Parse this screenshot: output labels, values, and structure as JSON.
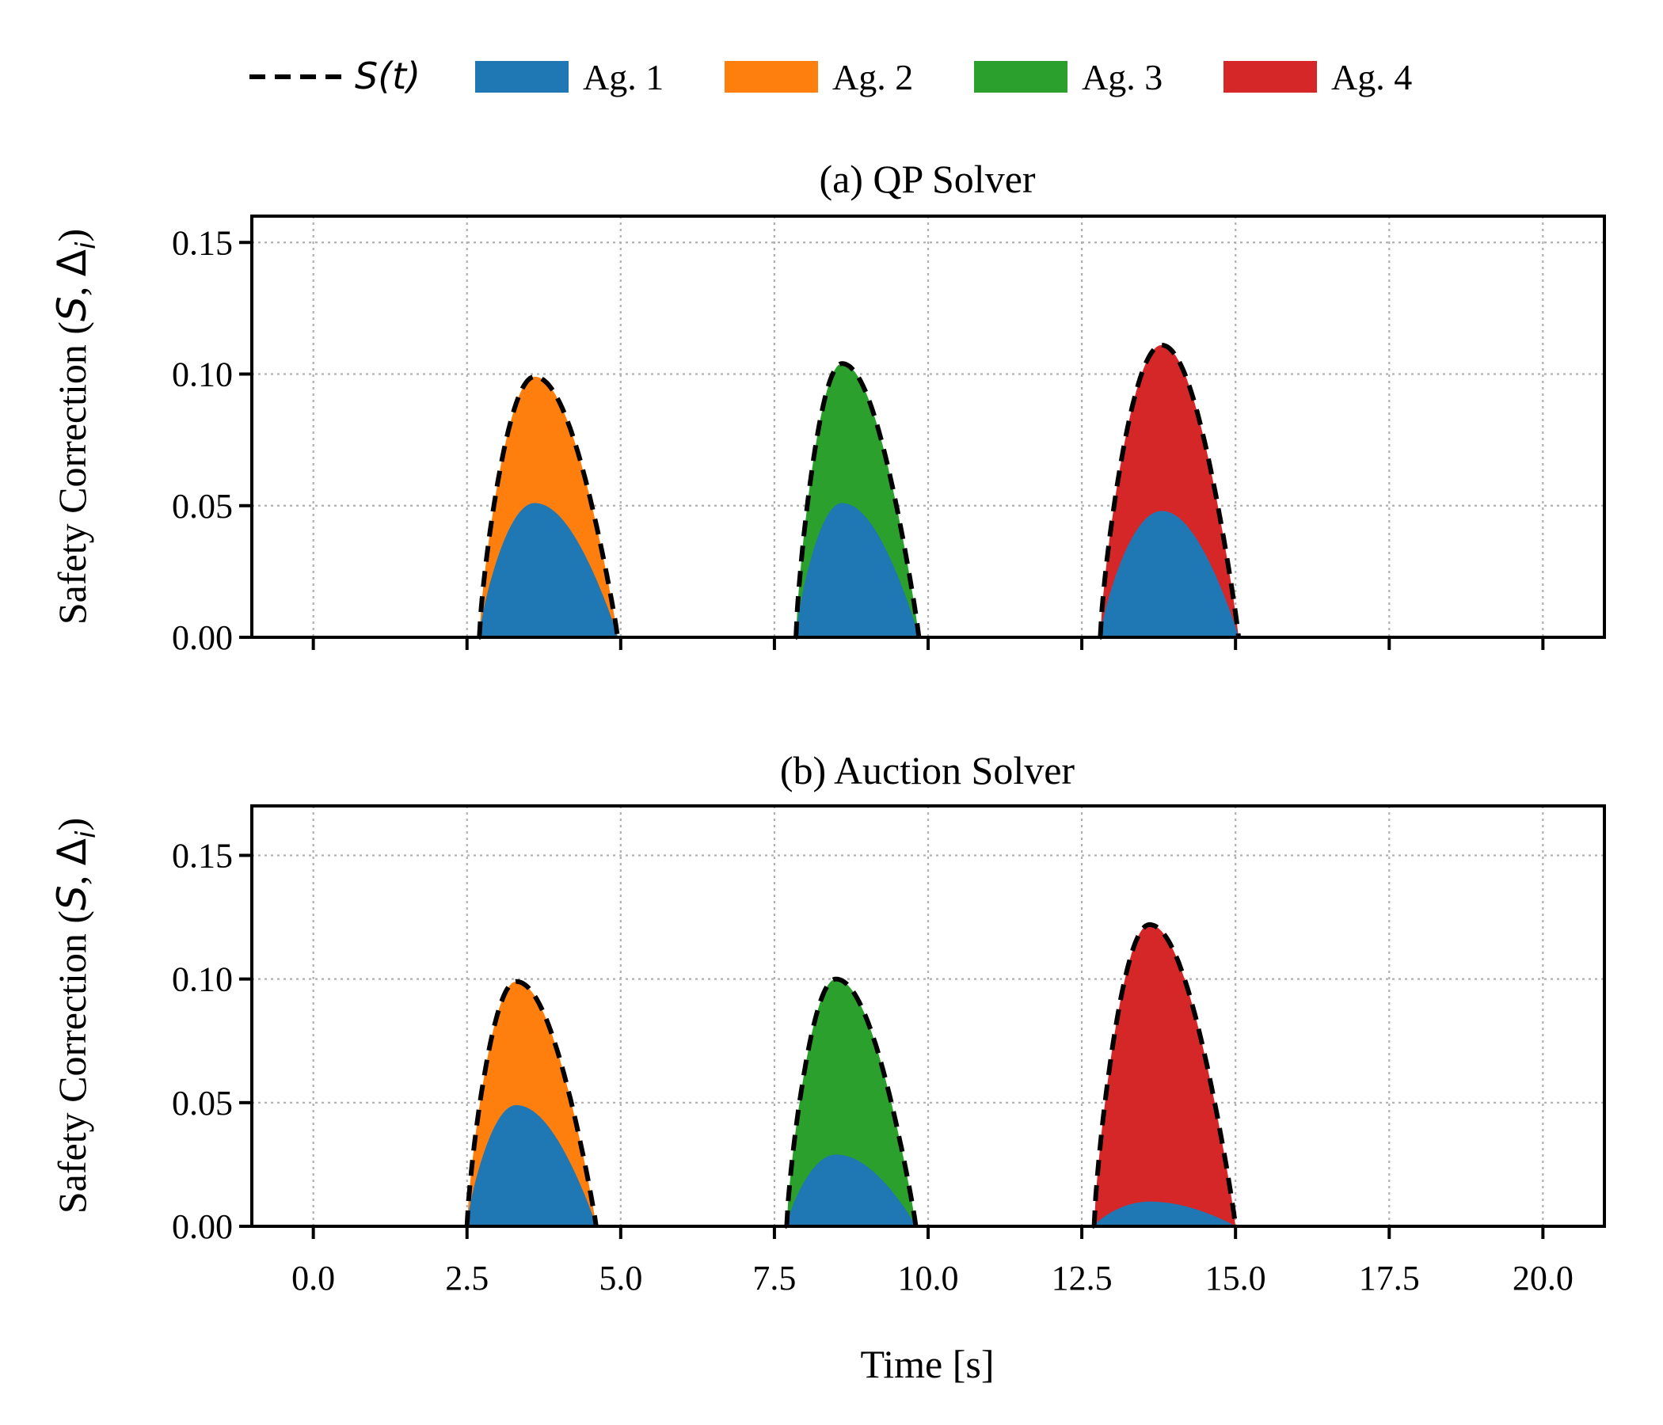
{
  "colors": {
    "S": "#000000",
    "ag1": "#1f77b4",
    "ag2": "#ff7f0e",
    "ag3": "#2ca02c",
    "ag4": "#d62728",
    "grid": "#b0b0b0"
  },
  "legend": {
    "s_label": "S(t)",
    "items": [
      "Ag. 1",
      "Ag. 2",
      "Ag. 3",
      "Ag. 4"
    ]
  },
  "chart_data": [
    {
      "type": "area",
      "title": "(a) QP Solver",
      "xlabel": "",
      "ylabel": "Safety Correction (S, Δi)",
      "xlim": [
        -1.0,
        21.0
      ],
      "ylim": [
        0.0,
        0.16
      ],
      "grid": true,
      "xticks": [
        0,
        2.5,
        5,
        7.5,
        10,
        12.5,
        15,
        17.5,
        20
      ],
      "xtick_labels": [
        "",
        "",
        "",
        "",
        "",
        "",
        "",
        "",
        ""
      ],
      "yticks": [
        0,
        0.05,
        0.1,
        0.15
      ],
      "ytick_labels": [
        "0.00",
        "0.05",
        "0.10",
        "0.15"
      ],
      "peaks": [
        {
          "second_agent": "Ag. 2",
          "start": 2.7,
          "end": 4.95,
          "peak_time": 3.6,
          "S_peak": 0.099,
          "ag1_peak": 0.051
        },
        {
          "second_agent": "Ag. 3",
          "start": 7.85,
          "end": 9.85,
          "peak_time": 8.6,
          "S_peak": 0.104,
          "ag1_peak": 0.051
        },
        {
          "second_agent": "Ag. 4",
          "start": 12.8,
          "end": 15.05,
          "peak_time": 13.8,
          "S_peak": 0.111,
          "ag1_peak": 0.048
        }
      ]
    },
    {
      "type": "area",
      "title": "(b) Auction Solver",
      "xlabel": "Time [s]",
      "ylabel": "Safety Correction (S, Δi)",
      "xlim": [
        -1.0,
        21.0
      ],
      "ylim": [
        0.0,
        0.17
      ],
      "grid": true,
      "xticks": [
        0,
        2.5,
        5,
        7.5,
        10,
        12.5,
        15,
        17.5,
        20
      ],
      "xtick_labels": [
        "0.0",
        "2.5",
        "5.0",
        "7.5",
        "10.0",
        "12.5",
        "15.0",
        "17.5",
        "20.0"
      ],
      "yticks": [
        0,
        0.05,
        0.1,
        0.15
      ],
      "ytick_labels": [
        "0.00",
        "0.05",
        "0.10",
        "0.15"
      ],
      "peaks": [
        {
          "second_agent": "Ag. 2",
          "start": 2.5,
          "end": 4.6,
          "peak_time": 3.3,
          "S_peak": 0.099,
          "ag1_peak": 0.049
        },
        {
          "second_agent": "Ag. 3",
          "start": 7.7,
          "end": 9.8,
          "peak_time": 8.5,
          "S_peak": 0.1,
          "ag1_peak": 0.029
        },
        {
          "second_agent": "Ag. 4",
          "start": 12.7,
          "end": 15.0,
          "peak_time": 13.6,
          "S_peak": 0.122,
          "ag1_peak": 0.01
        }
      ]
    }
  ]
}
